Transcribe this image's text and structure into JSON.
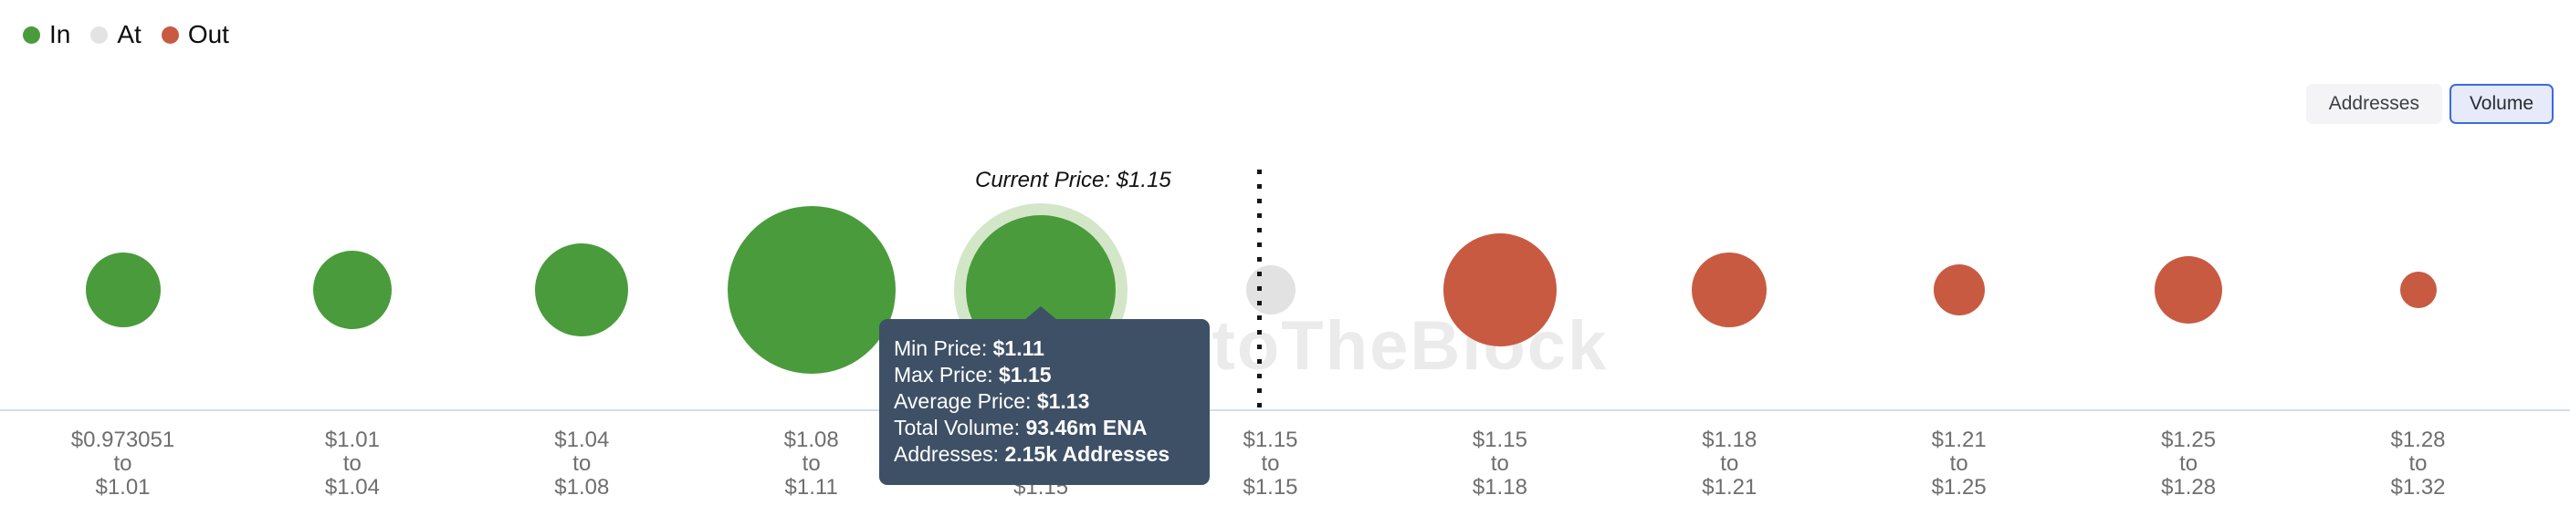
{
  "legend": {
    "items": [
      {
        "label": "In",
        "color": "#4a9b3c"
      },
      {
        "label": "At",
        "color": "#e3e3e3"
      },
      {
        "label": "Out",
        "color": "#c85a42"
      }
    ]
  },
  "toolbar": {
    "addresses_label": "Addresses",
    "volume_label": "Volume",
    "selected": "Volume"
  },
  "annotation": {
    "current_price": "Current Price: $1.15"
  },
  "watermark": {
    "text": "IntoTheBlock"
  },
  "tooltip": {
    "rows": [
      {
        "label": "Min Price: ",
        "value": "$1.11"
      },
      {
        "label": "Max Price: ",
        "value": "$1.15"
      },
      {
        "label": "Average Price: ",
        "value": "$1.13"
      },
      {
        "label": "Total Volume: ",
        "value": "93.46m ENA"
      },
      {
        "label": "Addresses: ",
        "value": "2.15k Addresses"
      }
    ]
  },
  "chart_data": {
    "type": "bubble",
    "description": "In/Out of the Money around current price — bubble size = volume per price range",
    "legend_entries": [
      "In",
      "At",
      "Out"
    ],
    "current_price": "$1.15",
    "x_tick_separator": "to",
    "colors": {
      "in": "#4a9b3c",
      "at": "rgba(17,17,17,0.12)",
      "out": "#c85a42",
      "hover_halo": "#d3e7c8"
    },
    "buckets": [
      {
        "from": "$0.973051",
        "to": "$1.01",
        "status": "in",
        "radius_px": 41,
        "hovered": false
      },
      {
        "from": "$1.01",
        "to": "$1.04",
        "status": "in",
        "radius_px": 43,
        "hovered": false
      },
      {
        "from": "$1.04",
        "to": "$1.08",
        "status": "in",
        "radius_px": 51,
        "hovered": false
      },
      {
        "from": "$1.08",
        "to": "$1.11",
        "status": "in",
        "radius_px": 92,
        "hovered": false
      },
      {
        "from": "$1.11",
        "to": "$1.15",
        "status": "in",
        "radius_px": 82,
        "hovered": true
      },
      {
        "from": "$1.15",
        "to": "$1.15",
        "status": "at",
        "radius_px": 27,
        "hovered": false
      },
      {
        "from": "$1.15",
        "to": "$1.18",
        "status": "out",
        "radius_px": 62,
        "hovered": false
      },
      {
        "from": "$1.18",
        "to": "$1.21",
        "status": "out",
        "radius_px": 41,
        "hovered": false
      },
      {
        "from": "$1.21",
        "to": "$1.25",
        "status": "out",
        "radius_px": 28,
        "hovered": false
      },
      {
        "from": "$1.25",
        "to": "$1.28",
        "status": "out",
        "radius_px": 37,
        "hovered": false
      },
      {
        "from": "$1.28",
        "to": "$1.32",
        "status": "out",
        "radius_px": 20,
        "hovered": false
      }
    ],
    "hovered_bucket": {
      "min_price": "$1.11",
      "max_price": "$1.15",
      "average_price": "$1.13",
      "total_volume": "93.46m ENA",
      "addresses": "2.15k Addresses"
    }
  }
}
